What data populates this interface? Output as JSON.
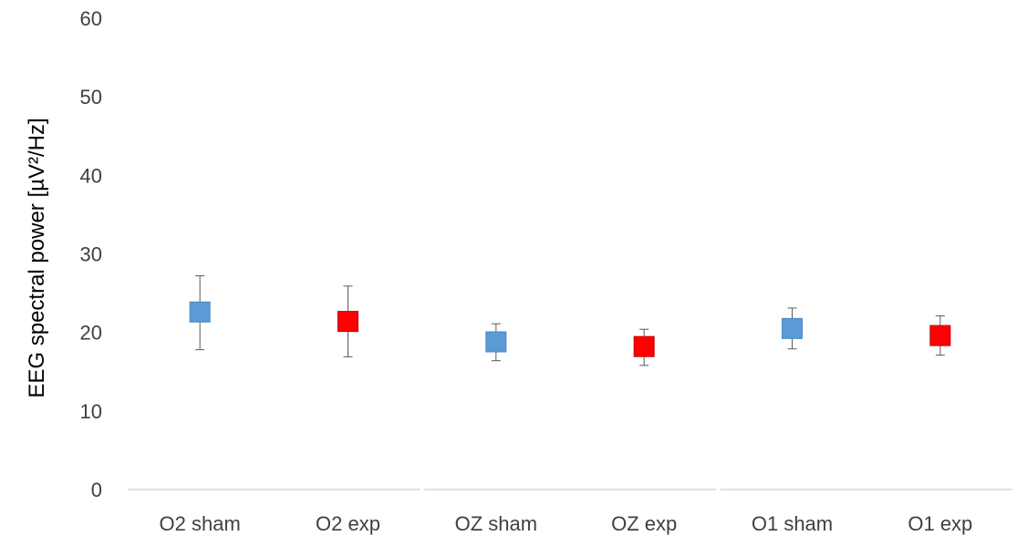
{
  "chart_data": {
    "type": "scatter",
    "title": "",
    "xlabel": "",
    "ylabel": "EEG spectral power [µV²/Hz]",
    "ylim": [
      0,
      60
    ],
    "yticks": [
      0,
      10,
      20,
      30,
      40,
      50,
      60
    ],
    "grid": false,
    "legend": "none",
    "categories": [
      "O2 sham",
      "O2 exp",
      "OZ sham",
      "OZ exp",
      "O1 sham",
      "O1 exp"
    ],
    "category_groups": [
      [
        "O2 sham",
        "O2 exp"
      ],
      [
        "OZ sham",
        "OZ exp"
      ],
      [
        "O1 sham",
        "O1 exp"
      ]
    ],
    "points": [
      {
        "category": "O2 sham",
        "value": 22.6,
        "err_low": 17.8,
        "err_high": 27.2,
        "color": "#5b9bd5"
      },
      {
        "category": "O2 exp",
        "value": 21.4,
        "err_low": 16.9,
        "err_high": 25.9,
        "color": "#ff0000"
      },
      {
        "category": "OZ sham",
        "value": 18.8,
        "err_low": 16.4,
        "err_high": 21.1,
        "color": "#5b9bd5"
      },
      {
        "category": "OZ exp",
        "value": 18.2,
        "err_low": 15.8,
        "err_high": 20.4,
        "color": "#ff0000"
      },
      {
        "category": "O1 sham",
        "value": 20.5,
        "err_low": 17.9,
        "err_high": 23.1,
        "color": "#5b9bd5"
      },
      {
        "category": "O1 exp",
        "value": 19.6,
        "err_low": 17.1,
        "err_high": 22.1,
        "color": "#ff0000"
      }
    ],
    "colors": {
      "sham": "#5b9bd5",
      "exp": "#ff0000",
      "axis": "#d9d9d9",
      "error_bar": "#595959"
    }
  }
}
